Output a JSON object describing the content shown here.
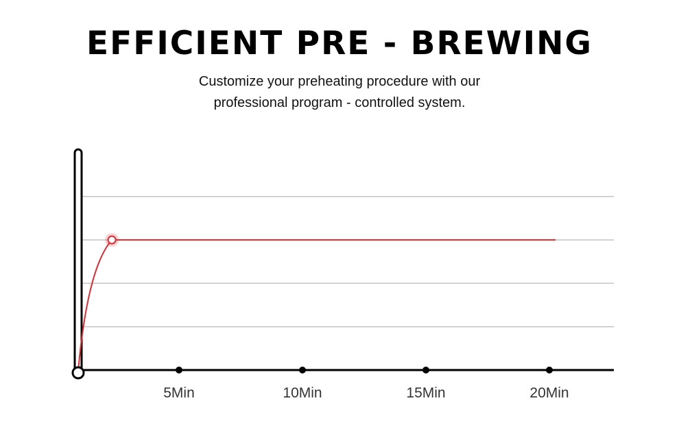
{
  "header": {
    "title": "EFFICIENT PRE - BREWING",
    "subtitle_line1": "Customize your preheating procedure with our",
    "subtitle_line2": "professional program - controlled system."
  },
  "chart_data": {
    "type": "line",
    "title": "EFFICIENT PRE - BREWING",
    "xlabel": "",
    "ylabel": "",
    "x_ticks": [
      5,
      10,
      15,
      20
    ],
    "x_tick_labels": [
      "5Min",
      "10Min",
      "15Min",
      "20Min"
    ],
    "xlim": [
      0,
      22.5
    ],
    "ylim": [
      0,
      4
    ],
    "grid_levels": [
      1,
      2,
      3,
      4
    ],
    "series": [
      {
        "name": "temperature",
        "color": "#e0282e",
        "points": [
          [
            0.92,
            0
          ],
          [
            1.3,
            1.5
          ],
          [
            1.8,
            2.6
          ],
          [
            2.28,
            3
          ],
          [
            20.25,
            3
          ]
        ]
      }
    ],
    "marker": {
      "x": 2.28,
      "y": 3
    }
  }
}
